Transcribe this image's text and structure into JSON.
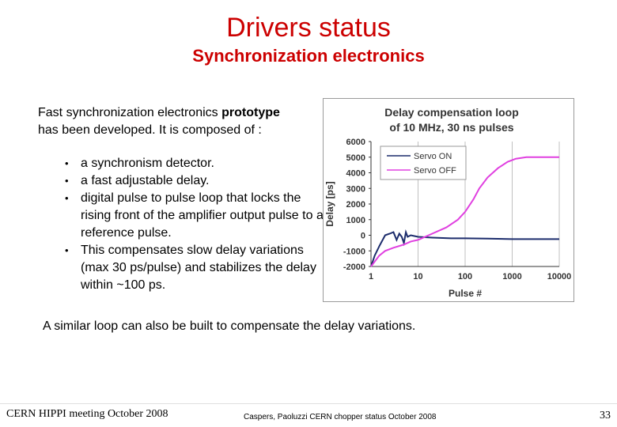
{
  "slide": {
    "title": "Drivers status",
    "subtitle": "Synchronization electronics",
    "intro_pre": "Fast synchronization electronics ",
    "intro_bold": "prototype",
    "intro_line2": "has been developed. It is composed of :",
    "bullets": [
      "a synchronism detector.",
      " a fast adjustable delay.",
      "digital pulse to pulse loop that locks the rising front of the amplifier output pulse to a reference pulse.",
      "This compensates slow delay variations (max 30 ps/pulse) and stabilizes the delay within ~100 ps."
    ],
    "bullet_symbol": "•",
    "bottom_text": "A similar loop can also be built to compensate the delay variations.",
    "footer_left": "CERN HIPPI meeting October 2008",
    "footer_mid": "Caspers, Paoluzzi CERN chopper status October 2008",
    "page_number": "33"
  },
  "chart_data": {
    "type": "line",
    "title_lines": [
      "Delay compensation loop",
      "of 10 MHz, 30 ns pulses"
    ],
    "xlabel": "Pulse #",
    "ylabel": "Delay [ps]",
    "x_scale": "log",
    "xlim": [
      1,
      10000
    ],
    "ylim": [
      -2000,
      6000
    ],
    "x_ticks": [
      1,
      10,
      100,
      1000,
      10000
    ],
    "x_tick_labels": [
      "1",
      "10",
      "100",
      "1000",
      "10000"
    ],
    "y_ticks": [
      6000,
      5000,
      4000,
      3000,
      2000,
      1000,
      0,
      -1000,
      -2000
    ],
    "y_tick_labels": [
      "6000",
      "5000",
      "4000",
      "3000",
      "2000",
      "1000",
      "0",
      "-1000",
      "-2000"
    ],
    "grid": "vertical",
    "legend_position": "top",
    "series": [
      {
        "name": "Servo ON",
        "color": "#1c2c6c",
        "points": [
          [
            1,
            -2000
          ],
          [
            1.2,
            -1300
          ],
          [
            1.5,
            -700
          ],
          [
            2,
            0
          ],
          [
            2.5,
            100
          ],
          [
            3,
            200
          ],
          [
            3.5,
            -300
          ],
          [
            4,
            100
          ],
          [
            4.5,
            -100
          ],
          [
            5,
            -500
          ],
          [
            5.5,
            200
          ],
          [
            6,
            -100
          ],
          [
            7,
            0
          ],
          [
            10,
            -100
          ],
          [
            20,
            -150
          ],
          [
            50,
            -200
          ],
          [
            100,
            -200
          ],
          [
            300,
            -220
          ],
          [
            1000,
            -250
          ],
          [
            10000,
            -250
          ]
        ]
      },
      {
        "name": "Servo OFF",
        "color": "#e040e0",
        "points": [
          [
            1,
            -2000
          ],
          [
            1.5,
            -1300
          ],
          [
            2,
            -1000
          ],
          [
            3,
            -800
          ],
          [
            5,
            -600
          ],
          [
            7,
            -400
          ],
          [
            10,
            -300
          ],
          [
            20,
            100
          ],
          [
            40,
            500
          ],
          [
            70,
            1000
          ],
          [
            100,
            1500
          ],
          [
            150,
            2300
          ],
          [
            200,
            3000
          ],
          [
            300,
            3700
          ],
          [
            500,
            4300
          ],
          [
            800,
            4700
          ],
          [
            1200,
            4900
          ],
          [
            2000,
            5000
          ],
          [
            5000,
            5000
          ],
          [
            10000,
            5000
          ]
        ]
      }
    ],
    "colors": {
      "axis": "#333333",
      "grid": "#c0c0c0",
      "plot_bg": "#ffffff"
    }
  }
}
